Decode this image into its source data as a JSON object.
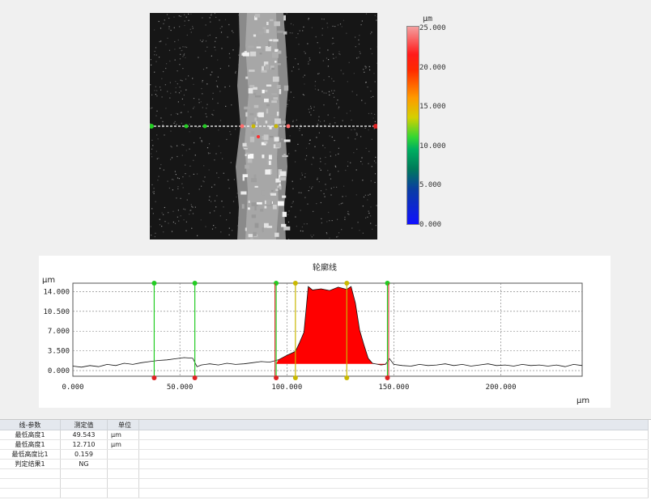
{
  "colorbar": {
    "unit": "μm",
    "ticks": [
      "25.000",
      "20.000",
      "15.000",
      "10.000",
      "5.000",
      "0.000"
    ]
  },
  "profile": {
    "title": "轮廓线",
    "y_unit": "μm",
    "x_unit": "μm",
    "y_ticks": [
      "14.000",
      "10.500",
      "7.000",
      "3.500",
      "0.000"
    ],
    "x_ticks": [
      "0.000",
      "50.000",
      "100.000",
      "150.000",
      "200.000"
    ],
    "fill_color": "#ff0000",
    "marker_colors": {
      "green": "#22cc22",
      "red": "#dd2222",
      "yellow": "#c9b800"
    }
  },
  "chart_data": {
    "type": "area",
    "title": "轮廓线",
    "xlabel": "μm",
    "ylabel": "μm",
    "xlim": [
      0,
      238
    ],
    "ylim": [
      -1,
      15.5
    ],
    "x": [
      0,
      4,
      8,
      12,
      16,
      20,
      24,
      28,
      32,
      36,
      40,
      44,
      48,
      52,
      56,
      58,
      60,
      64,
      68,
      72,
      76,
      80,
      84,
      88,
      92,
      96,
      100,
      104,
      106,
      108,
      110,
      112,
      116,
      120,
      124,
      128,
      130,
      132,
      134,
      136,
      138,
      140,
      144,
      146,
      148,
      150,
      154,
      158,
      162,
      166,
      170,
      174,
      178,
      182,
      186,
      190,
      194,
      198,
      202,
      206,
      210,
      214,
      218,
      222,
      226,
      230,
      234,
      238
    ],
    "y": [
      0.8,
      0.6,
      0.9,
      0.7,
      1.1,
      0.9,
      1.3,
      1.1,
      1.4,
      1.6,
      1.8,
      1.9,
      2.1,
      2.3,
      2.2,
      0.7,
      1.0,
      1.2,
      1.0,
      1.3,
      1.1,
      1.2,
      1.4,
      1.6,
      1.5,
      1.9,
      2.7,
      3.4,
      5.0,
      6.8,
      14.9,
      14.3,
      14.5,
      14.2,
      14.8,
      14.4,
      14.9,
      12.0,
      7.2,
      4.6,
      2.2,
      1.3,
      1.0,
      1.1,
      2.1,
      1.1,
      0.9,
      0.8,
      1.1,
      0.9,
      1.0,
      1.2,
      0.9,
      1.1,
      0.8,
      1.0,
      1.2,
      0.9,
      1.0,
      0.8,
      1.1,
      0.9,
      1.0,
      0.8,
      1.0,
      0.7,
      1.1,
      0.9
    ],
    "markers": {
      "green": [
        38,
        57,
        95,
        147
      ],
      "yellow": [
        104,
        128
      ],
      "red": [
        95,
        147
      ]
    }
  },
  "table": {
    "headers": [
      "线-参数",
      "测定值",
      "单位"
    ],
    "rows": [
      [
        "最低高度1",
        "49.543",
        "μm"
      ],
      [
        "最低高度1",
        "12.710",
        "μm"
      ],
      [
        "最低高度比1",
        "0.159",
        ""
      ],
      [
        "判定结果1",
        "NG",
        ""
      ]
    ]
  }
}
